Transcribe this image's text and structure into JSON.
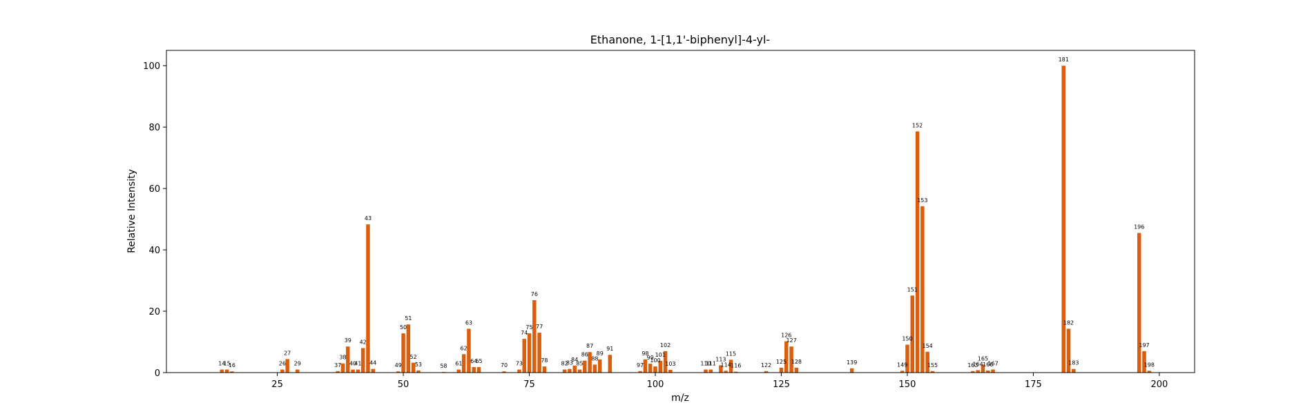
{
  "chart_data": {
    "type": "bar",
    "title": "Ethanone, 1-[1,1'-biphenyl]-4-yl-",
    "xlabel": "m/z",
    "ylabel": "Relative Intensity",
    "xlim": [
      3,
      207
    ],
    "ylim": [
      0,
      105
    ],
    "xticks": [
      25,
      50,
      75,
      100,
      125,
      150,
      175,
      200
    ],
    "yticks": [
      0,
      20,
      40,
      60,
      80,
      100
    ],
    "grid": false,
    "bar_color": "#d95f0e",
    "x": [
      14,
      15,
      16,
      26,
      27,
      29,
      37,
      38,
      39,
      40,
      41,
      42,
      43,
      44,
      49,
      50,
      51,
      52,
      53,
      58,
      61,
      62,
      63,
      64,
      65,
      70,
      73,
      74,
      75,
      76,
      77,
      78,
      82,
      83,
      84,
      85,
      86,
      87,
      88,
      89,
      91,
      97,
      98,
      99,
      100,
      101,
      102,
      103,
      110,
      111,
      113,
      114,
      115,
      116,
      122,
      125,
      126,
      127,
      128,
      139,
      149,
      150,
      151,
      152,
      153,
      154,
      155,
      163,
      164,
      165,
      166,
      167,
      181,
      182,
      183,
      196,
      197,
      198
    ],
    "y": [
      1.0,
      1.0,
      0.4,
      1.0,
      4.4,
      1.0,
      0.5,
      3.0,
      8.5,
      1.0,
      1.0,
      8.0,
      48.3,
      1.2,
      0.4,
      12.8,
      15.7,
      3.2,
      0.7,
      0.2,
      1.0,
      6.0,
      14.3,
      1.8,
      1.8,
      0.4,
      1.0,
      11.0,
      12.8,
      23.6,
      13.0,
      2.0,
      1.0,
      1.2,
      2.3,
      1.0,
      3.9,
      6.7,
      2.6,
      4.3,
      5.8,
      0.5,
      4.3,
      2.9,
      2.0,
      3.8,
      7.0,
      0.9,
      1.0,
      1.0,
      2.4,
      0.6,
      4.2,
      0.3,
      0.5,
      1.6,
      10.2,
      8.5,
      1.6,
      1.4,
      0.6,
      9.1,
      25.1,
      78.6,
      54.2,
      6.8,
      0.5,
      0.5,
      0.8,
      2.6,
      0.7,
      1.0,
      100.0,
      14.3,
      1.2,
      45.5,
      7.0,
      0.6
    ]
  }
}
